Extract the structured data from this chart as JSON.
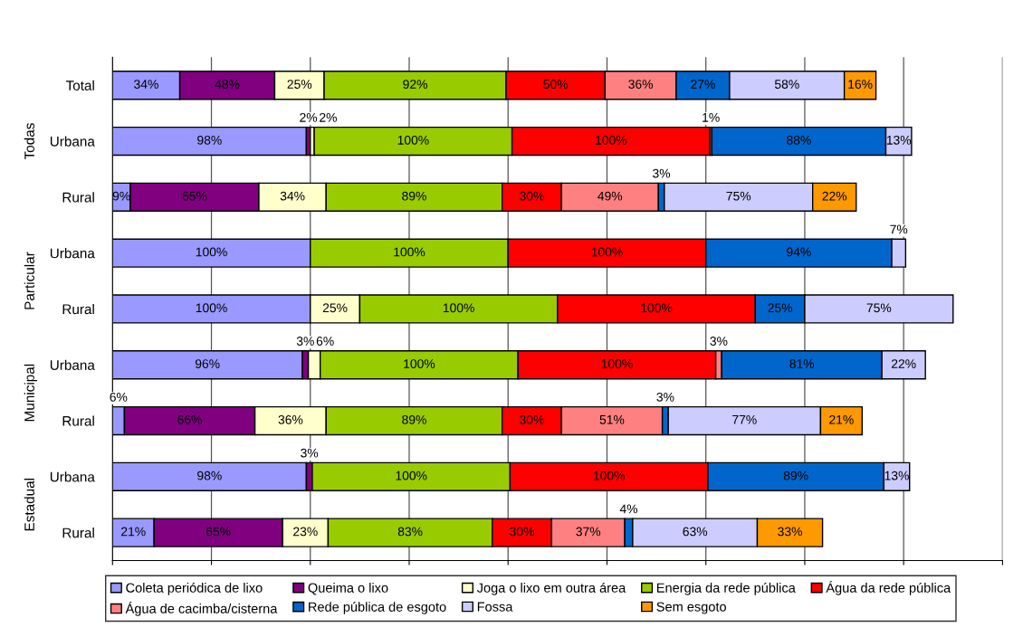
{
  "chart_data": {
    "type": "bar",
    "orientation": "horizontal",
    "stacked": true,
    "categories": [
      "Total",
      "Urbana",
      "Rural",
      "Urbana",
      "Rural",
      "Urbana",
      "Rural",
      "Urbana",
      "Rural"
    ],
    "annotations": [
      "Todas",
      "Particular",
      "Municipal",
      "Estadual"
    ],
    "series": [
      {
        "name": "Coleta periódica de lixo",
        "color": "#9999ff",
        "values": [
          34,
          98,
          9,
          100,
          100,
          96,
          6,
          98,
          21
        ],
        "value_labels": [
          "34%",
          "98%",
          "9%",
          "100%",
          "100%",
          "96%",
          "6%",
          "98%",
          "21%"
        ]
      },
      {
        "name": "Queima o lixo",
        "color": "#800080",
        "values": [
          48,
          2,
          65,
          null,
          null,
          3,
          66,
          3,
          65
        ],
        "value_labels": [
          "48%",
          "2%",
          "65%",
          null,
          null,
          "3%",
          "66%",
          "3%",
          "65%"
        ]
      },
      {
        "name": "Joga o lixo em outra área",
        "color": "#ffffcc",
        "values": [
          25,
          2,
          34,
          null,
          25,
          6,
          36,
          null,
          23
        ],
        "value_labels": [
          "25%",
          "2%",
          "34%",
          null,
          "25%",
          "6%",
          "36%",
          null,
          "23%"
        ]
      },
      {
        "name": "Energia da rede pública",
        "color": "#99cc00",
        "values": [
          92,
          100,
          89,
          100,
          100,
          100,
          89,
          100,
          83
        ],
        "value_labels": [
          "92%",
          "100%",
          "89%",
          "100%",
          "100%",
          "100%",
          "89%",
          "100%",
          "83%"
        ]
      },
      {
        "name": "Água da rede pública",
        "color": "#ff0000",
        "values": [
          50,
          100,
          30,
          100,
          100,
          100,
          30,
          100,
          30
        ],
        "value_labels": [
          "50%",
          "100%",
          "30%",
          "100%",
          "100%",
          "100%",
          "30%",
          "100%",
          "30%"
        ]
      },
      {
        "name": "Água de cacimba/cisterna",
        "color": "#ff8080",
        "values": [
          36,
          1,
          49,
          null,
          null,
          3,
          51,
          null,
          37
        ],
        "value_labels": [
          "36%",
          "1%",
          "49%",
          null,
          null,
          "3%",
          "51%",
          null,
          "37%"
        ]
      },
      {
        "name": "Rede pública de esgoto",
        "color": "#0066cc",
        "values": [
          27,
          88,
          3,
          94,
          25,
          81,
          3,
          89,
          4
        ],
        "value_labels": [
          "27%",
          "88%",
          "3%",
          "94%",
          "25%",
          "81%",
          "3%",
          "89%",
          "4%"
        ]
      },
      {
        "name": "Fossa",
        "color": "#ccccff",
        "values": [
          58,
          13,
          75,
          7,
          75,
          22,
          77,
          13,
          63
        ],
        "value_labels": [
          "58%",
          "13%",
          "75%",
          "7%",
          "75%",
          "22%",
          "77%",
          "13%",
          "63%"
        ]
      },
      {
        "name": "Sem esgoto",
        "color": "#ff9900",
        "values": [
          16,
          null,
          22,
          null,
          null,
          null,
          21,
          null,
          33
        ],
        "value_labels": [
          "16%",
          null,
          "22%",
          null,
          null,
          null,
          "21%",
          null,
          "33%"
        ]
      }
    ],
    "xlim": [
      0,
      450
    ],
    "xticks": [
      {
        "value": 0,
        "label": null
      },
      {
        "value": 50,
        "label": null
      },
      {
        "value": 100,
        "label": null
      },
      {
        "value": 150,
        "label": null
      },
      {
        "value": 200,
        "label": null
      },
      {
        "value": 250,
        "label": null
      },
      {
        "value": 300,
        "label": null
      },
      {
        "value": 350,
        "label": null
      },
      {
        "value": 400,
        "label": null
      },
      {
        "value": 450,
        "label": null
      }
    ],
    "tick_labels": "y",
    "grid": "x",
    "legend": "bottom"
  }
}
